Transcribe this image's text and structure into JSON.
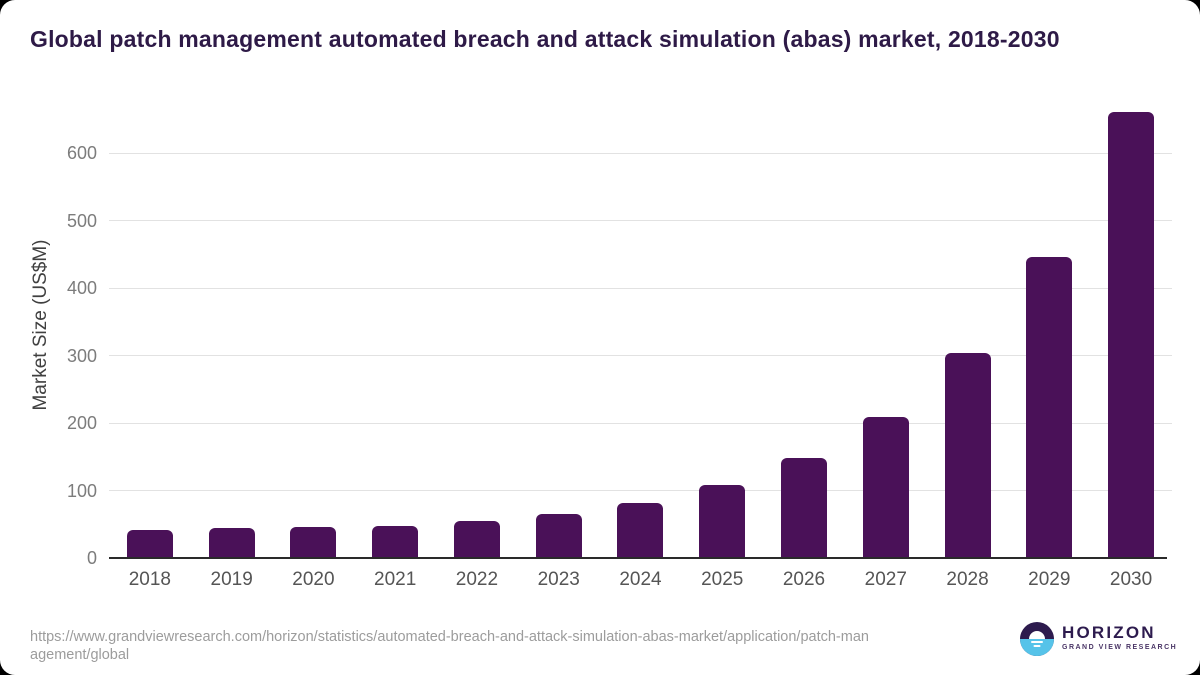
{
  "page": {
    "title": "Global patch management automated breach and attack simulation (abas) market, 2018-2030"
  },
  "chart_data": {
    "type": "bar",
    "title": "Global patch management automated breach and attack simulation (abas) market, 2018-2030",
    "categories": [
      "2018",
      "2019",
      "2020",
      "2021",
      "2022",
      "2023",
      "2024",
      "2025",
      "2026",
      "2027",
      "2028",
      "2029",
      "2030"
    ],
    "values": [
      42,
      44,
      46,
      48,
      55,
      65,
      81,
      108,
      148,
      209,
      304,
      446,
      661
    ],
    "xlabel": "",
    "ylabel": "Market Size (US$M)",
    "yticks": [
      0,
      100,
      200,
      300,
      400,
      500,
      600
    ],
    "ylim": [
      0,
      680
    ],
    "grid": true,
    "legend": false,
    "bar_color": "#4a1158"
  },
  "footer": {
    "url_line_1": "https://www.grandviewresearch.com/horizon/statistics/automated-breach-and-attack-simulation-abas-market/application/patch-man",
    "url_line_2": "agement/global",
    "logo": {
      "wordmark": "HORIZON",
      "subtitle": "GRAND VIEW RESEARCH"
    }
  },
  "colors": {
    "background": "#000000",
    "card": "#ffffff",
    "bar": "#4a1158",
    "title_text": "#2e1a47",
    "year_text": "#555555",
    "tick_text": "#7c7c7c",
    "gridline": "#e2e2e2",
    "axis_line": "#2a2a2a",
    "url_text": "#9c9c9c",
    "logo_navy": "#2d1b4e",
    "logo_blue": "#56c3e9"
  }
}
